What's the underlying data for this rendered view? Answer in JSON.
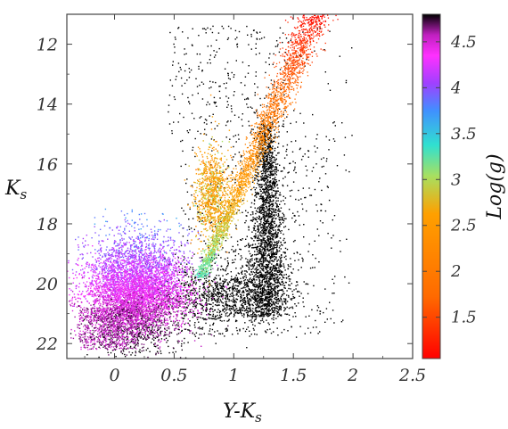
{
  "chart_data": {
    "type": "scatter",
    "title": "",
    "xlabel": "Y-K",
    "xlabel_sub": "s",
    "ylabel": "K",
    "ylabel_sub": "s",
    "xlim": [
      -0.4,
      2.5
    ],
    "ylim": [
      22.5,
      11
    ],
    "y_inverted": true,
    "x_ticks": [
      0,
      0.5,
      1,
      1.5,
      2,
      2.5
    ],
    "x_tick_labels": [
      "0",
      "0.5",
      "1",
      "1.5",
      "2",
      "2.5"
    ],
    "y_ticks": [
      12,
      14,
      16,
      18,
      20,
      22
    ],
    "y_tick_labels": [
      "12",
      "14",
      "16",
      "18",
      "20",
      "22"
    ],
    "grid": false,
    "colorbar": {
      "label": "Log(g)",
      "range": [
        1.05,
        4.8
      ],
      "ticks": [
        1.5,
        2,
        2.5,
        3,
        3.5,
        4,
        4.5
      ],
      "tick_labels": [
        "1.5",
        "2",
        "2.5",
        "3",
        "3.5",
        "4",
        "4.5"
      ],
      "colormap": [
        "#ff0000",
        "#ff6a00",
        "#ffa000",
        "#a8e060",
        "#30e0d0",
        "#4090ff",
        "#a040ff",
        "#ff30ff",
        "#c020c0",
        "#000000"
      ]
    },
    "series": [
      {
        "kind": "uncolored",
        "color": "#000000",
        "description_components": [
          {
            "component": "observed red sequence",
            "x_center": 1.28,
            "x_spread": 0.05,
            "y_range": [
              14.5,
              21.2
            ],
            "density": "high"
          },
          {
            "component": "observed diffuse field",
            "x_range": [
              0.45,
              1.9
            ],
            "y_range": [
              11.4,
              21.8
            ],
            "density": "low"
          }
        ]
      },
      {
        "kind": "colored_by_logg",
        "components": [
          {
            "component": "main sequence dwarfs",
            "x_range": [
              -0.35,
              0.85
            ],
            "y_range": [
              17.5,
              22.3
            ],
            "logg": [
              3.8,
              4.8
            ]
          },
          {
            "component": "giant branch",
            "x_range": [
              0.65,
              1.75
            ],
            "y_range": [
              11,
              19.8
            ],
            "logg": [
              1.1,
              3.3
            ]
          }
        ]
      }
    ]
  }
}
